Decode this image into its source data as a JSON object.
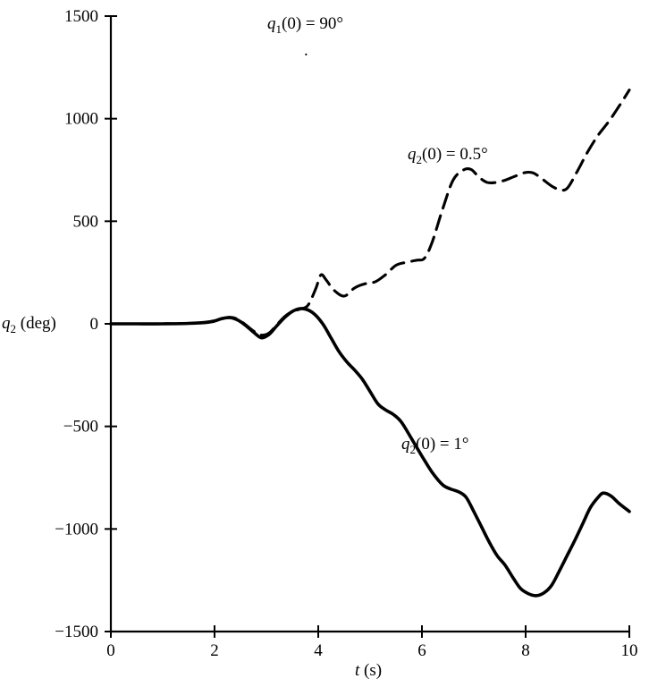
{
  "figure": {
    "background": "#ffffff",
    "ink": "#000000"
  },
  "labels": {
    "q1": {
      "var": "q",
      "sub": "1",
      "rest": "(0) = 90°"
    },
    "dashed": {
      "var": "q",
      "sub": "2",
      "rest": "(0) = 0.5°"
    },
    "solid": {
      "var": "q",
      "sub": "2",
      "rest": "(0) = 1°"
    },
    "y_axis": {
      "var": "q",
      "sub": "2",
      "rest": " (deg)"
    },
    "x_axis": {
      "var": "t",
      "sub": "",
      "rest": " (s)"
    },
    "stray_dot": "."
  },
  "chart_data": {
    "type": "line",
    "title": "q₁(0) = 90°",
    "xlabel": "t (s)",
    "ylabel": "q₂ (deg)",
    "xlim": [
      0,
      10
    ],
    "ylim": [
      -1500,
      1500
    ],
    "grid": false,
    "legend_position": "inline-annotations",
    "x_ticks": [
      {
        "value": 0,
        "label": "0"
      },
      {
        "value": 2,
        "label": "2"
      },
      {
        "value": 4,
        "label": "4"
      },
      {
        "value": 6,
        "label": "6"
      },
      {
        "value": 8,
        "label": "8"
      },
      {
        "value": 10,
        "label": "10"
      }
    ],
    "y_ticks": [
      {
        "value": -1500,
        "label": "−1500"
      },
      {
        "value": -1000,
        "label": "−1000"
      },
      {
        "value": -500,
        "label": "−500"
      },
      {
        "value": 0,
        "label": "0"
      },
      {
        "value": 500,
        "label": "500"
      },
      {
        "value": 1000,
        "label": "1000"
      },
      {
        "value": 1500,
        "label": "1500"
      }
    ],
    "annotations": [
      {
        "text": "q₁(0) = 90°",
        "x": 3.8,
        "y": 1430
      },
      {
        "text": "q₂(0) = 0.5°",
        "x": 5.8,
        "y": 810
      },
      {
        "text": "q₂(0) = 1°",
        "x": 5.7,
        "y": -560
      }
    ],
    "series": [
      {
        "name": "q₂(0) = 0.5°",
        "style": "dashed",
        "points": [
          [
            0,
            0
          ],
          [
            0.5,
            0
          ],
          [
            1.0,
            0
          ],
          [
            1.5,
            2
          ],
          [
            1.8,
            5
          ],
          [
            2.0,
            12
          ],
          [
            2.15,
            25
          ],
          [
            2.3,
            32
          ],
          [
            2.45,
            22
          ],
          [
            2.6,
            -5
          ],
          [
            2.75,
            -35
          ],
          [
            2.9,
            -55
          ],
          [
            3.05,
            -45
          ],
          [
            3.2,
            -5
          ],
          [
            3.35,
            35
          ],
          [
            3.5,
            60
          ],
          [
            3.65,
            72
          ],
          [
            3.8,
            90
          ],
          [
            3.95,
            170
          ],
          [
            4.05,
            238
          ],
          [
            4.15,
            215
          ],
          [
            4.3,
            165
          ],
          [
            4.5,
            135
          ],
          [
            4.7,
            175
          ],
          [
            4.9,
            195
          ],
          [
            5.1,
            205
          ],
          [
            5.3,
            240
          ],
          [
            5.5,
            285
          ],
          [
            5.7,
            300
          ],
          [
            5.9,
            310
          ],
          [
            6.05,
            320
          ],
          [
            6.2,
            400
          ],
          [
            6.4,
            560
          ],
          [
            6.6,
            700
          ],
          [
            6.8,
            750
          ],
          [
            6.95,
            752
          ],
          [
            7.1,
            715
          ],
          [
            7.25,
            690
          ],
          [
            7.4,
            688
          ],
          [
            7.6,
            700
          ],
          [
            7.8,
            720
          ],
          [
            8.0,
            738
          ],
          [
            8.15,
            735
          ],
          [
            8.3,
            710
          ],
          [
            8.5,
            672
          ],
          [
            8.65,
            655
          ],
          [
            8.8,
            660
          ],
          [
            9.0,
            745
          ],
          [
            9.2,
            840
          ],
          [
            9.4,
            920
          ],
          [
            9.6,
            985
          ],
          [
            9.8,
            1060
          ],
          [
            10.0,
            1140
          ]
        ]
      },
      {
        "name": "q₂(0) = 1°",
        "style": "solid",
        "points": [
          [
            0,
            0
          ],
          [
            0.5,
            0
          ],
          [
            1.0,
            0
          ],
          [
            1.5,
            2
          ],
          [
            1.8,
            6
          ],
          [
            2.0,
            14
          ],
          [
            2.15,
            26
          ],
          [
            2.3,
            30
          ],
          [
            2.45,
            18
          ],
          [
            2.6,
            -8
          ],
          [
            2.75,
            -40
          ],
          [
            2.9,
            -68
          ],
          [
            3.05,
            -52
          ],
          [
            3.2,
            -10
          ],
          [
            3.35,
            30
          ],
          [
            3.5,
            60
          ],
          [
            3.65,
            74
          ],
          [
            3.8,
            68
          ],
          [
            3.95,
            42
          ],
          [
            4.1,
            -5
          ],
          [
            4.25,
            -70
          ],
          [
            4.4,
            -135
          ],
          [
            4.55,
            -185
          ],
          [
            4.7,
            -225
          ],
          [
            4.85,
            -270
          ],
          [
            5.0,
            -330
          ],
          [
            5.15,
            -390
          ],
          [
            5.3,
            -420
          ],
          [
            5.45,
            -442
          ],
          [
            5.6,
            -478
          ],
          [
            5.8,
            -560
          ],
          [
            6.0,
            -645
          ],
          [
            6.2,
            -725
          ],
          [
            6.4,
            -785
          ],
          [
            6.55,
            -805
          ],
          [
            6.7,
            -818
          ],
          [
            6.85,
            -845
          ],
          [
            7.0,
            -915
          ],
          [
            7.15,
            -990
          ],
          [
            7.3,
            -1065
          ],
          [
            7.45,
            -1130
          ],
          [
            7.6,
            -1175
          ],
          [
            7.75,
            -1235
          ],
          [
            7.9,
            -1290
          ],
          [
            8.05,
            -1315
          ],
          [
            8.2,
            -1325
          ],
          [
            8.35,
            -1312
          ],
          [
            8.5,
            -1275
          ],
          [
            8.65,
            -1205
          ],
          [
            8.8,
            -1130
          ],
          [
            8.95,
            -1055
          ],
          [
            9.1,
            -975
          ],
          [
            9.25,
            -895
          ],
          [
            9.4,
            -845
          ],
          [
            9.5,
            -825
          ],
          [
            9.65,
            -840
          ],
          [
            9.8,
            -875
          ],
          [
            10.0,
            -915
          ]
        ]
      }
    ]
  }
}
